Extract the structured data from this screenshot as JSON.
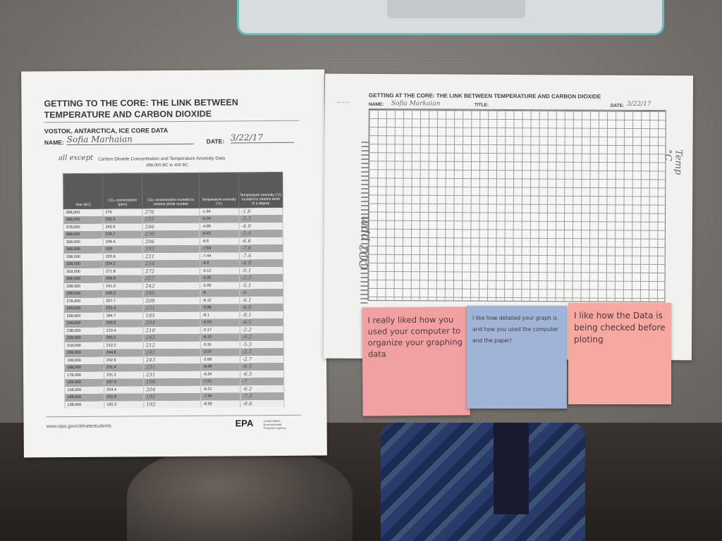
{
  "left_sheet": {
    "title_line1": "GETTING TO THE CORE: THE LINK BETWEEN",
    "title_line2": "TEMPERATURE AND CARBON DIOXIDE",
    "subtitle": "VOSTOK, ANTARCTICA, ICE CORE DATA",
    "name_label": "NAME:",
    "name_value": "Sofia Marhaian",
    "date_label": "DATE:",
    "date_value": "3/22/17",
    "hand_note": "all except",
    "table_caption": "Carbon Dioxide Concentration and Temperature Anomaly Data",
    "table_subcaption": "398,000 BC to 400 BC",
    "columns": [
      "Year (BC)",
      "CO₂ concentration (ppm)",
      "CO₂ concentration rounded to nearest whole number",
      "Temperature anomaly (°C)",
      "Temperature anomaly (°C) rounded to nearest tenth of a degree"
    ],
    "rows": [
      [
        "398,000",
        "276",
        "276",
        "-1.64",
        "-1.6"
      ],
      [
        "388,000",
        "255.3",
        "255",
        "-5.34",
        "-5.3"
      ],
      [
        "378,000",
        "245.9",
        "246",
        "-4.89",
        "-4.9"
      ],
      [
        "368,000",
        "229.7",
        "230",
        "-5.42",
        "-5.4"
      ],
      [
        "358,000",
        "206.4",
        "206",
        "-6.6",
        "-6.6"
      ],
      [
        "348,000",
        "193",
        "193",
        "-7.64",
        "-7.6"
      ],
      [
        "338,000",
        "220.6",
        "221",
        "-7.44",
        "-7.4"
      ],
      [
        "328,000",
        "234.2",
        "234",
        "-4.9",
        "-4.9"
      ],
      [
        "318,000",
        "271.8",
        "272",
        "-0.12",
        "-0.1"
      ],
      [
        "308,000",
        "256.8",
        "257",
        "-3.32",
        "-3.3"
      ],
      [
        "298,000",
        "241.9",
        "242",
        "-5.05",
        "-5.1"
      ],
      [
        "288,000",
        "240.2",
        "240",
        "-6",
        "-6"
      ],
      [
        "278,000",
        "207.7",
        "208",
        "-6.12",
        "-6.1"
      ],
      [
        "268,000",
        "231.4",
        "231",
        "-5.96",
        "-6.0"
      ],
      [
        "258,000",
        "184.7",
        "185",
        "-8.1",
        "-8.1"
      ],
      [
        "248,000",
        "203.9",
        "204",
        "-6.53",
        "-6.5"
      ],
      [
        "238,000",
        "210.4",
        "210",
        "-2.17",
        "-2.2"
      ],
      [
        "228,000",
        "245.2",
        "245",
        "-6.15",
        "-6.2"
      ],
      [
        "218,000",
        "212.2",
        "212",
        "-5.31",
        "-5.3"
      ],
      [
        "208,000",
        "244.8",
        "245",
        "-2.07",
        "-2.1"
      ],
      [
        "198,000",
        "242.6",
        "243",
        "-2.68",
        "-2.7"
      ],
      [
        "188,000",
        "231.4",
        "231",
        "-6.49",
        "-6.5"
      ],
      [
        "178,000",
        "231.2",
        "231",
        "-6.34",
        "-6.3"
      ],
      [
        "168,000",
        "197.9",
        "198",
        "-7.01",
        "-7"
      ],
      [
        "158,000",
        "204.4",
        "204",
        "-6.21",
        "-6.2"
      ],
      [
        "148,000",
        "191.9",
        "192",
        "-7.34",
        "-7.3"
      ],
      [
        "138,000",
        "192.3",
        "192",
        "-8.59",
        "-8.6"
      ]
    ],
    "footer_url": "www.epa.gov/climatestudents",
    "logo_text": "EPA",
    "logo_subtext": "United States Environmental Protection Agency"
  },
  "right_sheet": {
    "title": "GETTING AT THE CORE: THE LINK BETWEEN TEMPERATURE AND CARBON DIOXIDE",
    "name_label": "NAME:",
    "name_value": "Sofia Markaian",
    "title_label": "TITLE:",
    "date_label": "DATE:",
    "date_value": "3/22/17",
    "y_axis_hand": "CO2 ppm",
    "right_axis_hand": "Temp °C"
  },
  "sticky_notes": [
    {
      "text": "I really liked how you used your computer to organize your graphing data",
      "color": "#f2a1a3"
    },
    {
      "text": "I like how detailed your graph is and how you used the computer and the paper!",
      "color": "#9fb4d6"
    },
    {
      "text": "I like how the Data is being checked before ploting",
      "color": "#f7a8a0"
    }
  ],
  "colors": {
    "laptop_accent": "#5fc1bd",
    "table_header": "#5a5a5a"
  }
}
